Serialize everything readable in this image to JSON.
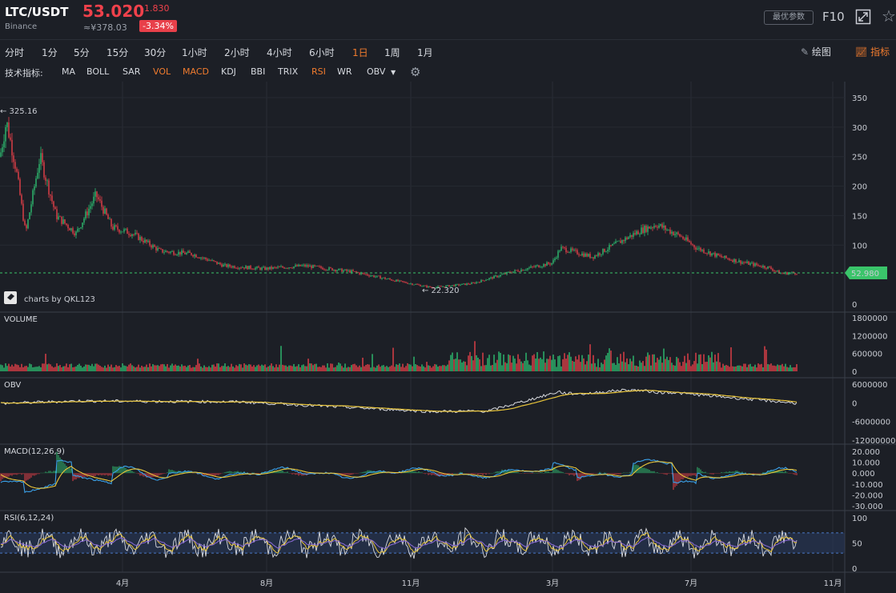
{
  "header": {
    "pair": "LTC/USDT",
    "exchange": "Binance",
    "price": "53.020",
    "cny_price": "≈¥378.03",
    "change": "-1.830",
    "change_pct": "-3.34%",
    "best_params_label": "最优参数",
    "f10_label": "F10",
    "expand_icon": "expand-icon",
    "star_icon": "star-icon"
  },
  "periods": [
    "分时",
    "1分",
    "5分",
    "15分",
    "30分",
    "1小时",
    "2小时",
    "4小时",
    "6小时",
    "1日",
    "1周",
    "1月"
  ],
  "active_period": "1日",
  "tools": {
    "draw_label": "绘图",
    "indicator_label": "指标"
  },
  "indicator_bar": {
    "label": "技术指标:",
    "items": [
      "MA",
      "BOLL",
      "SAR",
      "VOL",
      "MACD",
      "KDJ",
      "BBI",
      "TRIX",
      "RSI",
      "WR",
      "OBV"
    ],
    "active": [
      "VOL",
      "MACD",
      "RSI"
    ],
    "gear_icon": "gear-icon"
  },
  "colors": {
    "up": "#2fbf71",
    "down": "#e8404a",
    "accent": "#f07b2e",
    "last_price": "#3ac46a",
    "yellow": "#e9c53a",
    "blue": "#3aa0e8",
    "white_line": "#d9dbe0",
    "purple": "#8b6bd9"
  },
  "chart_data": {
    "type": "candlestick",
    "x_ticks": [
      "4月",
      "8月",
      "11月",
      "3月",
      "7月",
      "11月"
    ],
    "price_panel": {
      "y_ticks": [
        "350",
        "300",
        "250",
        "200",
        "150",
        "100",
        "0"
      ],
      "ylim": [
        0,
        360
      ],
      "last_price": "52.980",
      "high_label": "325.16",
      "low_label": "22.320",
      "watermark": "charts by QKL123",
      "trend": [
        [
          0,
          250
        ],
        [
          8,
          310
        ],
        [
          20,
          230
        ],
        [
          32,
          120
        ],
        [
          50,
          250
        ],
        [
          70,
          150
        ],
        [
          95,
          120
        ],
        [
          120,
          185
        ],
        [
          140,
          130
        ],
        [
          165,
          120
        ],
        [
          200,
          90
        ],
        [
          240,
          85
        ],
        [
          280,
          65
        ],
        [
          330,
          60
        ],
        [
          380,
          65
        ],
        [
          440,
          55
        ],
        [
          500,
          38
        ],
        [
          540,
          28
        ],
        [
          590,
          35
        ],
        [
          640,
          55
        ],
        [
          690,
          70
        ],
        [
          700,
          95
        ],
        [
          740,
          80
        ],
        [
          780,
          110
        ],
        [
          800,
          125
        ],
        [
          820,
          135
        ],
        [
          850,
          115
        ],
        [
          870,
          95
        ],
        [
          900,
          80
        ],
        [
          930,
          70
        ],
        [
          960,
          62
        ],
        [
          975,
          52
        ],
        [
          995,
          53
        ]
      ]
    },
    "volume_panel": {
      "title": "VOLUME",
      "y_ticks": [
        "1800000",
        "1200000",
        "600000",
        "0"
      ],
      "ylim": [
        0,
        1800000
      ]
    },
    "obv_panel": {
      "title": "OBV",
      "y_ticks": [
        "6000000",
        "0",
        "-6000000",
        "-12000000"
      ],
      "ylim": [
        -12000000,
        6000000
      ]
    },
    "macd_panel": {
      "title": "MACD(12,26,9)",
      "y_ticks": [
        "20.000",
        "10.000",
        "0.000",
        "-10.000",
        "-20.000",
        "-30.000"
      ],
      "ylim": [
        -30,
        20
      ]
    },
    "rsi_panel": {
      "title": "RSI(6,12,24)",
      "y_ticks": [
        "100",
        "50",
        "0"
      ],
      "ylim": [
        0,
        100
      ],
      "band": [
        30,
        70
      ]
    }
  }
}
